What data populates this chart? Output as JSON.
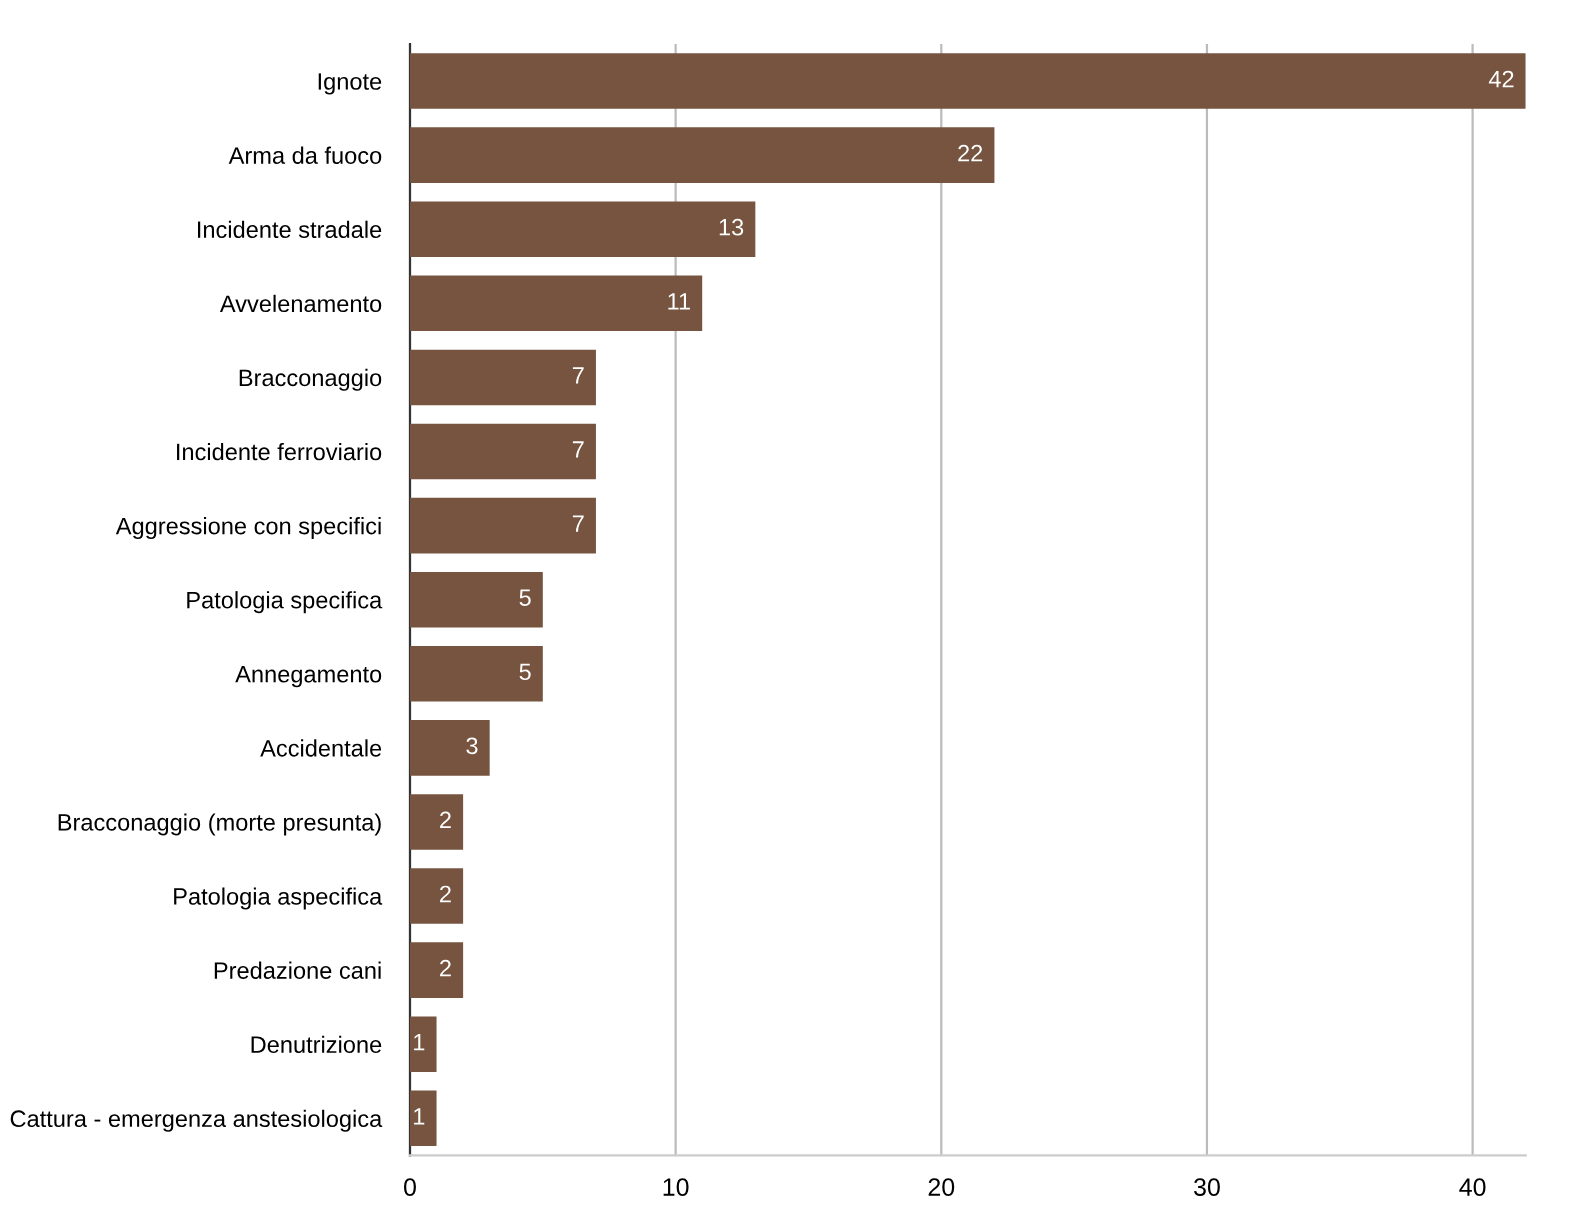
{
  "chart_data": {
    "type": "bar",
    "orientation": "horizontal",
    "categories": [
      "Ignote",
      "Arma da fuoco",
      "Incidente stradale",
      "Avvelenamento",
      "Bracconaggio",
      "Incidente ferroviario",
      "Aggressione con specifici",
      "Patologia specifica",
      "Annegamento",
      "Accidentale",
      "Bracconaggio (morte presunta)",
      "Patologia aspecifica",
      "Predazione cani",
      "Denutrizione",
      "Cattura - emergenza anstesiologica"
    ],
    "values": [
      42,
      22,
      13,
      11,
      7,
      7,
      7,
      5,
      5,
      3,
      2,
      2,
      2,
      1,
      1
    ],
    "color": "#76543f",
    "xlim": [
      0,
      42
    ],
    "xticks": [
      0,
      10,
      20,
      30,
      40
    ],
    "grid": "x",
    "data_labels": true
  }
}
